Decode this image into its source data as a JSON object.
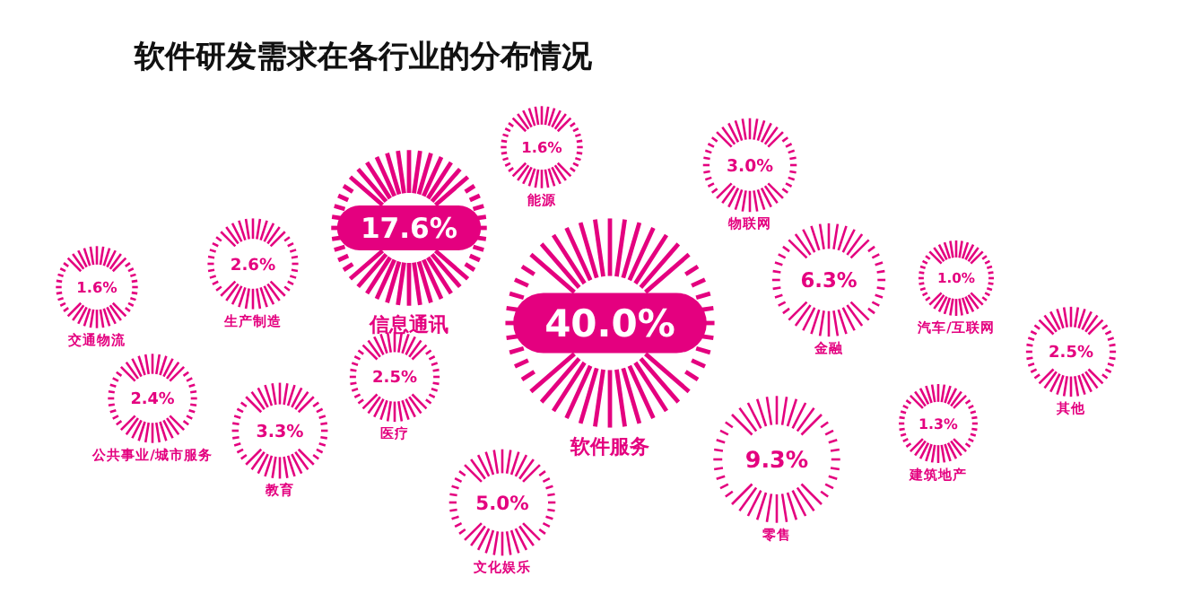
{
  "chart_data": {
    "type": "other",
    "title": "软件研发需求在各行业的分布情况",
    "categories": [
      "交通物流",
      "公共事业/城市服务",
      "生产制造",
      "教育",
      "信息通讯",
      "医疗",
      "能源",
      "文化娱乐",
      "软件服务",
      "物联网",
      "零售",
      "金融",
      "建筑地产",
      "汽车/互联网",
      "其他"
    ],
    "values": [
      1.6,
      2.4,
      2.6,
      3.3,
      17.6,
      2.5,
      1.6,
      5.0,
      40.0,
      3.0,
      9.3,
      6.3,
      1.3,
      1.0,
      2.5
    ],
    "value_labels": [
      "1.6%",
      "2.4%",
      "2.6%",
      "3.3%",
      "17.6%",
      "2.5%",
      "1.6%",
      "5.0%",
      "40.0%",
      "3.0%",
      "9.3%",
      "6.3%",
      "1.3%",
      "1.0%",
      "2.5%"
    ],
    "color": "#e4007f"
  }
}
